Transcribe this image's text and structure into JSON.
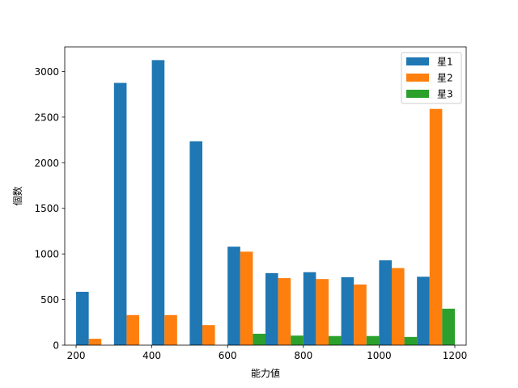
{
  "chart_data": {
    "type": "bar",
    "title": "",
    "xlabel": "能力値",
    "ylabel": "個数",
    "xlim": [
      170,
      1230
    ],
    "ylim": [
      0,
      3270
    ],
    "x_ticks": [
      200,
      400,
      600,
      800,
      1000,
      1200
    ],
    "y_ticks": [
      0,
      500,
      1000,
      1500,
      2000,
      2500,
      3000
    ],
    "categories": [
      200,
      300,
      400,
      500,
      600,
      700,
      800,
      900,
      1000,
      1100
    ],
    "bin_width": 100,
    "legend": {
      "position": "top-right"
    },
    "grid": false,
    "series": [
      {
        "name": "星1",
        "color": "#1f77b4",
        "values": [
          585,
          2875,
          3125,
          2235,
          1080,
          790,
          800,
          745,
          930,
          750
        ]
      },
      {
        "name": "星2",
        "color": "#ff7f0e",
        "values": [
          70,
          330,
          330,
          220,
          1025,
          735,
          725,
          665,
          845,
          2590
        ]
      },
      {
        "name": "星3",
        "color": "#2ca02c",
        "values": [
          0,
          0,
          0,
          0,
          125,
          105,
          100,
          100,
          90,
          400
        ]
      }
    ]
  }
}
